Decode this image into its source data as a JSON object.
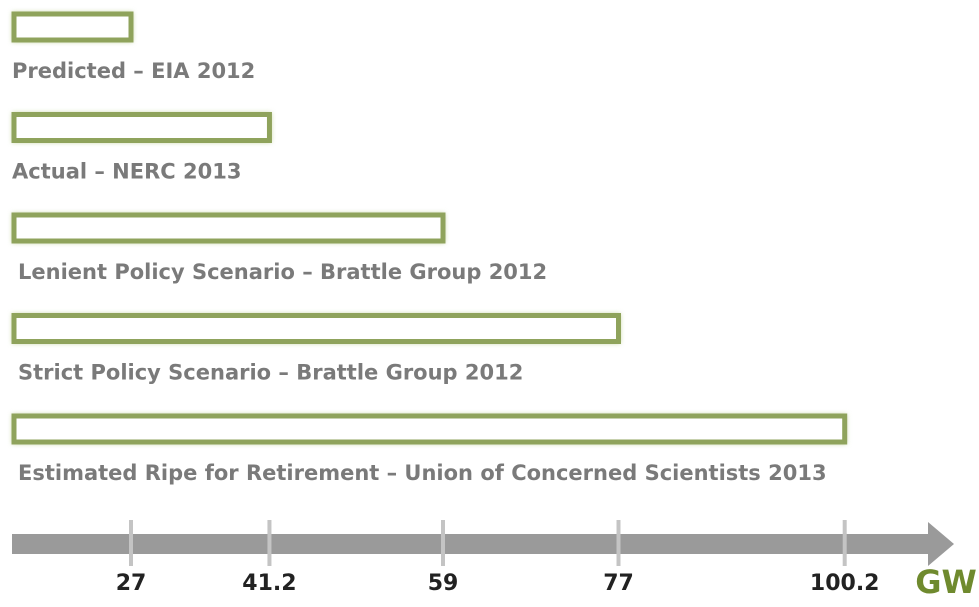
{
  "chart_data": {
    "type": "hbar",
    "categories": [
      "Predicted – EIA 2012",
      "Actual – NERC 2013",
      "Lenient Policy Scenario – Brattle Group 2012",
      "Strict Policy Scenario – Brattle Group 2012",
      "Estimated Ripe for Retirement – Union of Concerned Scientists 2013"
    ],
    "values": [
      27,
      41.2,
      59,
      77,
      100.2
    ],
    "color": "#8fa35c",
    "x_label": "GW",
    "xlim": [
      15,
      111
    ],
    "xticks": [
      27,
      41.2,
      59,
      77,
      100.2
    ]
  }
}
